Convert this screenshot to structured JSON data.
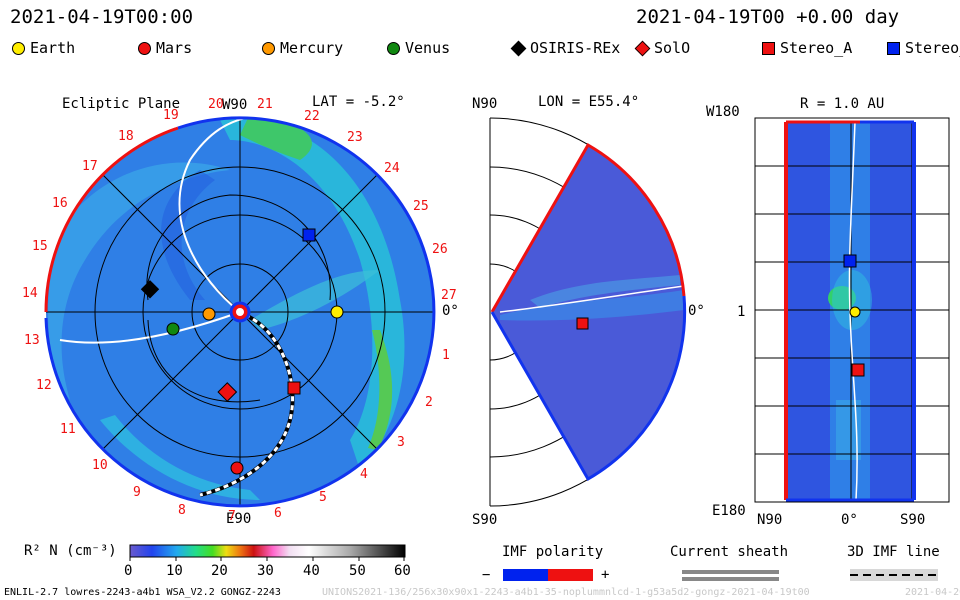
{
  "header": {
    "timestamp_left": "2021-04-19T00:00",
    "timestamp_right": "2021-04-19T00 +0.00 day"
  },
  "legend": [
    {
      "name": "Earth",
      "shape": "circle",
      "color": "#ffee00"
    },
    {
      "name": "Mars",
      "shape": "circle",
      "color": "#ee1111"
    },
    {
      "name": "Mercury",
      "shape": "circle",
      "color": "#ff9900"
    },
    {
      "name": "Venus",
      "shape": "circle",
      "color": "#118811"
    },
    {
      "name": "OSIRIS-REx",
      "shape": "diamond",
      "color": "#000000"
    },
    {
      "name": "SolO",
      "shape": "diamond",
      "color": "#ee1111"
    },
    {
      "name": "Stereo_A",
      "shape": "square",
      "color": "#ee1111"
    },
    {
      "name": "Stereo_",
      "shape": "square",
      "color": "#0022ee"
    }
  ],
  "ecliptic_panel": {
    "title": "Ecliptic Plane",
    "lat_label": "LAT = -5.2°",
    "top_label": "W90",
    "bottom_label": "E90",
    "right_label": "0°",
    "carrington_numbers": [
      "1",
      "2",
      "3",
      "4",
      "5",
      "6",
      "7",
      "8",
      "9",
      "10",
      "11",
      "12",
      "13",
      "14",
      "15",
      "16",
      "17",
      "18",
      "19",
      "20",
      "21",
      "22",
      "23",
      "24",
      "25",
      "26",
      "27"
    ]
  },
  "meridional_panel": {
    "top_label": "N90",
    "lon_label": "LON = E55.4°",
    "bottom_label": "S90",
    "right_label": "0°"
  },
  "radius_panel": {
    "r_label": "R = 1.0 AU",
    "top_label": "W180",
    "bottom_label": "E180",
    "left_mid_label": "1",
    "x_labels": [
      "N90",
      "0°",
      "S90"
    ]
  },
  "colorbar": {
    "label": "R² N (cm⁻³)",
    "ticks": [
      "0",
      "10",
      "20",
      "30",
      "40",
      "50",
      "60"
    ]
  },
  "imf_polarity": {
    "title": "IMF polarity",
    "minus": "−",
    "plus": "+"
  },
  "current_sheath": {
    "title": "Current sheath"
  },
  "imf_line": {
    "title": "3D IMF line"
  },
  "footer": {
    "left": "ENLIL-2.7 lowres-2243-a4b1 WSA_V2.2 GONGZ-2243",
    "middle": "UNIONS2021-136/256x30x90x1-2243-a4b1-35-noplummnlcd-1-g53a5d2-gongz-2021-04-19t00",
    "right": "2021-04-20"
  }
}
